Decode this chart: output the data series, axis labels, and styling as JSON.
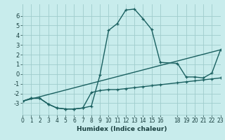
{
  "xlabel": "Humidex (Indice chaleur)",
  "background_color": "#c8ecec",
  "grid_color": "#a0cccc",
  "line_color": "#1a6060",
  "curve1_x": [
    0,
    1,
    2,
    3,
    4,
    5,
    6,
    7,
    8,
    9,
    10,
    11,
    12,
    13,
    14,
    15,
    16,
    18,
    19,
    20,
    21,
    22,
    23
  ],
  "curve1_y": [
    -2.8,
    -2.5,
    -2.5,
    -3.1,
    -3.5,
    -3.6,
    -3.6,
    -3.5,
    -3.3,
    -0.1,
    4.5,
    5.2,
    6.6,
    6.7,
    5.7,
    4.6,
    1.2,
    1.1,
    -0.3,
    -0.3,
    -0.4,
    0.1,
    2.5
  ],
  "curve2_x": [
    0,
    1,
    2,
    3,
    4,
    5,
    6,
    7,
    8,
    9,
    10,
    11,
    12,
    13,
    14,
    15,
    16,
    18,
    19,
    20,
    21,
    22,
    23
  ],
  "curve2_y": [
    -2.8,
    -2.5,
    -2.5,
    -3.1,
    -3.5,
    -3.6,
    -3.6,
    -3.5,
    -1.9,
    -1.7,
    -1.6,
    -1.6,
    -1.5,
    -1.4,
    -1.3,
    -1.2,
    -1.1,
    -0.9,
    -0.8,
    -0.7,
    -0.6,
    -0.5,
    -0.4
  ],
  "line3_x": [
    0,
    23
  ],
  "line3_y": [
    -2.8,
    2.5
  ],
  "xlim": [
    0,
    23
  ],
  "ylim": [
    -4.2,
    7.2
  ],
  "xticks": [
    0,
    1,
    2,
    3,
    4,
    5,
    6,
    7,
    8,
    9,
    10,
    11,
    12,
    13,
    14,
    15,
    16,
    18,
    19,
    20,
    21,
    22,
    23
  ],
  "yticks": [
    -3,
    -2,
    -1,
    0,
    1,
    2,
    3,
    4,
    5,
    6
  ]
}
